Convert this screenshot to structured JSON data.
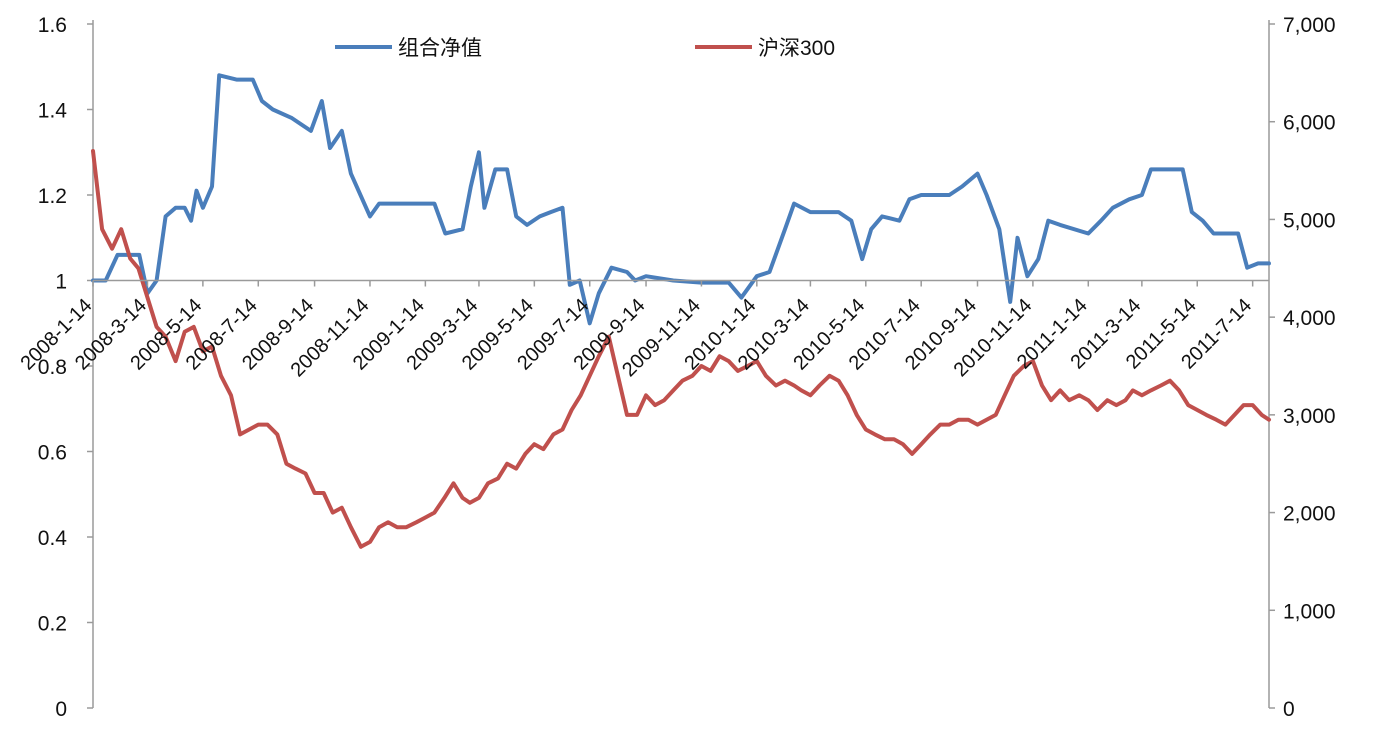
{
  "chart_data": {
    "type": "line",
    "x_type": "date",
    "x_ticks": [
      "2008-1-14",
      "2008-3-14",
      "2008-5-14",
      "2008-7-14",
      "2008-9-14",
      "2008-11-14",
      "2009-1-14",
      "2009-3-14",
      "2009-5-14",
      "2009-7-14",
      "2009-9-14",
      "2009-11-14",
      "2010-1-14",
      "2010-3-14",
      "2010-5-14",
      "2010-7-14",
      "2010-9-14",
      "2010-11-14",
      "2011-1-14",
      "2011-3-14",
      "2011-5-14",
      "2011-7-14"
    ],
    "x_range": [
      "2008-1-14",
      "2011-8-1"
    ],
    "y_left": {
      "ticks": [
        "0",
        "0.2",
        "0.4",
        "0.6",
        "0.8",
        "1",
        "1.2",
        "1.4",
        "1.6"
      ],
      "range": [
        0,
        1.6
      ],
      "crosses_at": 1
    },
    "y_right": {
      "ticks": [
        "0",
        "1,000",
        "2,000",
        "3,000",
        "4,000",
        "5,000",
        "6,000",
        "7,000"
      ],
      "range": [
        0,
        7000
      ]
    },
    "grid": false,
    "legend": {
      "position": "top-center"
    },
    "series": [
      {
        "name": "组合净值",
        "axis": "left",
        "color": "#4a7ebb",
        "points": [
          [
            "2008-1-14",
            1.0
          ],
          [
            "2008-1-28",
            1.0
          ],
          [
            "2008-2-10",
            1.06
          ],
          [
            "2008-3-5",
            1.06
          ],
          [
            "2008-3-14",
            0.97
          ],
          [
            "2008-3-24",
            1.0
          ],
          [
            "2008-4-3",
            1.15
          ],
          [
            "2008-4-14",
            1.17
          ],
          [
            "2008-4-24",
            1.17
          ],
          [
            "2008-5-1",
            1.14
          ],
          [
            "2008-5-7",
            1.21
          ],
          [
            "2008-5-14",
            1.17
          ],
          [
            "2008-5-24",
            1.22
          ],
          [
            "2008-6-1",
            1.48
          ],
          [
            "2008-6-20",
            1.47
          ],
          [
            "2008-7-8",
            1.47
          ],
          [
            "2008-7-18",
            1.42
          ],
          [
            "2008-7-30",
            1.4
          ],
          [
            "2008-8-20",
            1.38
          ],
          [
            "2008-9-10",
            1.35
          ],
          [
            "2008-9-22",
            1.42
          ],
          [
            "2008-10-1",
            1.31
          ],
          [
            "2008-10-14",
            1.35
          ],
          [
            "2008-10-24",
            1.25
          ],
          [
            "2008-11-14",
            1.15
          ],
          [
            "2008-11-24",
            1.18
          ],
          [
            "2008-12-24",
            1.18
          ],
          [
            "2009-1-24",
            1.18
          ],
          [
            "2009-2-5",
            1.11
          ],
          [
            "2009-2-24",
            1.12
          ],
          [
            "2009-3-5",
            1.22
          ],
          [
            "2009-3-14",
            1.3
          ],
          [
            "2009-3-20",
            1.17
          ],
          [
            "2009-4-1",
            1.26
          ],
          [
            "2009-4-14",
            1.26
          ],
          [
            "2009-4-24",
            1.15
          ],
          [
            "2009-5-6",
            1.13
          ],
          [
            "2009-5-20",
            1.15
          ],
          [
            "2009-6-1",
            1.16
          ],
          [
            "2009-6-14",
            1.17
          ],
          [
            "2009-6-22",
            0.99
          ],
          [
            "2009-7-3",
            1.0
          ],
          [
            "2009-7-14",
            0.9
          ],
          [
            "2009-7-24",
            0.97
          ],
          [
            "2009-8-7",
            1.03
          ],
          [
            "2009-8-24",
            1.02
          ],
          [
            "2009-9-2",
            1.0
          ],
          [
            "2009-9-14",
            1.01
          ],
          [
            "2009-10-14",
            1.0
          ],
          [
            "2009-11-14",
            0.995
          ],
          [
            "2009-12-14",
            0.995
          ],
          [
            "2009-12-28",
            0.96
          ],
          [
            "2010-1-14",
            1.01
          ],
          [
            "2010-1-28",
            1.02
          ],
          [
            "2010-2-14",
            1.12
          ],
          [
            "2010-2-24",
            1.18
          ],
          [
            "2010-3-14",
            1.16
          ],
          [
            "2010-4-14",
            1.16
          ],
          [
            "2010-4-28",
            1.14
          ],
          [
            "2010-5-10",
            1.05
          ],
          [
            "2010-5-20",
            1.12
          ],
          [
            "2010-6-1",
            1.15
          ],
          [
            "2010-6-20",
            1.14
          ],
          [
            "2010-7-1",
            1.19
          ],
          [
            "2010-7-14",
            1.2
          ],
          [
            "2010-7-28",
            1.2
          ],
          [
            "2010-8-14",
            1.2
          ],
          [
            "2010-8-28",
            1.22
          ],
          [
            "2010-9-14",
            1.25
          ],
          [
            "2010-9-24",
            1.2
          ],
          [
            "2010-10-8",
            1.12
          ],
          [
            "2010-10-20",
            0.95
          ],
          [
            "2010-10-28",
            1.1
          ],
          [
            "2010-11-8",
            1.01
          ],
          [
            "2010-11-20",
            1.05
          ],
          [
            "2010-12-1",
            1.14
          ],
          [
            "2010-12-14",
            1.13
          ],
          [
            "2011-1-14",
            1.11
          ],
          [
            "2011-1-28",
            1.14
          ],
          [
            "2011-2-10",
            1.17
          ],
          [
            "2011-2-28",
            1.19
          ],
          [
            "2011-3-14",
            1.2
          ],
          [
            "2011-3-24",
            1.26
          ],
          [
            "2011-4-14",
            1.26
          ],
          [
            "2011-4-28",
            1.26
          ],
          [
            "2011-5-8",
            1.16
          ],
          [
            "2011-5-20",
            1.14
          ],
          [
            "2011-6-1",
            1.11
          ],
          [
            "2011-6-14",
            1.11
          ],
          [
            "2011-6-28",
            1.11
          ],
          [
            "2011-7-8",
            1.03
          ],
          [
            "2011-7-20",
            1.04
          ],
          [
            "2011-8-1",
            1.04
          ]
        ]
      },
      {
        "name": "沪深300",
        "axis": "right",
        "color": "#c0504d",
        "points": [
          [
            "2008-1-14",
            5700
          ],
          [
            "2008-1-24",
            4900
          ],
          [
            "2008-2-4",
            4700
          ],
          [
            "2008-2-14",
            4900
          ],
          [
            "2008-2-24",
            4600
          ],
          [
            "2008-3-4",
            4500
          ],
          [
            "2008-3-14",
            4200
          ],
          [
            "2008-3-24",
            3900
          ],
          [
            "2008-4-3",
            3800
          ],
          [
            "2008-4-14",
            3550
          ],
          [
            "2008-4-24",
            3850
          ],
          [
            "2008-5-4",
            3900
          ],
          [
            "2008-5-14",
            3650
          ],
          [
            "2008-5-24",
            3700
          ],
          [
            "2008-6-3",
            3400
          ],
          [
            "2008-6-14",
            3200
          ],
          [
            "2008-6-24",
            2800
          ],
          [
            "2008-7-4",
            2850
          ],
          [
            "2008-7-14",
            2900
          ],
          [
            "2008-7-24",
            2900
          ],
          [
            "2008-8-4",
            2800
          ],
          [
            "2008-8-14",
            2500
          ],
          [
            "2008-8-24",
            2450
          ],
          [
            "2008-9-4",
            2400
          ],
          [
            "2008-9-14",
            2200
          ],
          [
            "2008-9-24",
            2200
          ],
          [
            "2008-10-4",
            2000
          ],
          [
            "2008-10-14",
            2050
          ],
          [
            "2008-10-24",
            1850
          ],
          [
            "2008-11-4",
            1650
          ],
          [
            "2008-11-14",
            1700
          ],
          [
            "2008-11-24",
            1850
          ],
          [
            "2008-12-4",
            1900
          ],
          [
            "2008-12-14",
            1850
          ],
          [
            "2008-12-24",
            1850
          ],
          [
            "2009-1-4",
            1900
          ],
          [
            "2009-1-14",
            1950
          ],
          [
            "2009-1-24",
            2000
          ],
          [
            "2009-2-4",
            2150
          ],
          [
            "2009-2-14",
            2300
          ],
          [
            "2009-2-24",
            2150
          ],
          [
            "2009-3-4",
            2100
          ],
          [
            "2009-3-14",
            2150
          ],
          [
            "2009-3-24",
            2300
          ],
          [
            "2009-4-4",
            2350
          ],
          [
            "2009-4-14",
            2500
          ],
          [
            "2009-4-24",
            2450
          ],
          [
            "2009-5-4",
            2600
          ],
          [
            "2009-5-14",
            2700
          ],
          [
            "2009-5-24",
            2650
          ],
          [
            "2009-6-4",
            2800
          ],
          [
            "2009-6-14",
            2850
          ],
          [
            "2009-6-24",
            3050
          ],
          [
            "2009-7-4",
            3200
          ],
          [
            "2009-7-14",
            3400
          ],
          [
            "2009-7-24",
            3600
          ],
          [
            "2009-8-4",
            3800
          ],
          [
            "2009-8-14",
            3400
          ],
          [
            "2009-8-24",
            3000
          ],
          [
            "2009-9-4",
            3000
          ],
          [
            "2009-9-14",
            3200
          ],
          [
            "2009-9-24",
            3100
          ],
          [
            "2009-10-4",
            3150
          ],
          [
            "2009-10-14",
            3250
          ],
          [
            "2009-10-24",
            3350
          ],
          [
            "2009-11-4",
            3400
          ],
          [
            "2009-11-14",
            3500
          ],
          [
            "2009-11-24",
            3450
          ],
          [
            "2009-12-4",
            3600
          ],
          [
            "2009-12-14",
            3550
          ],
          [
            "2009-12-24",
            3450
          ],
          [
            "2010-1-4",
            3500
          ],
          [
            "2010-1-14",
            3550
          ],
          [
            "2010-1-24",
            3400
          ],
          [
            "2010-2-4",
            3300
          ],
          [
            "2010-2-14",
            3350
          ],
          [
            "2010-2-24",
            3300
          ],
          [
            "2010-3-4",
            3250
          ],
          [
            "2010-3-14",
            3200
          ],
          [
            "2010-3-24",
            3300
          ],
          [
            "2010-4-4",
            3400
          ],
          [
            "2010-4-14",
            3350
          ],
          [
            "2010-4-24",
            3200
          ],
          [
            "2010-5-4",
            3000
          ],
          [
            "2010-5-14",
            2850
          ],
          [
            "2010-5-24",
            2800
          ],
          [
            "2010-6-4",
            2750
          ],
          [
            "2010-6-14",
            2750
          ],
          [
            "2010-6-24",
            2700
          ],
          [
            "2010-7-4",
            2600
          ],
          [
            "2010-7-14",
            2700
          ],
          [
            "2010-7-24",
            2800
          ],
          [
            "2010-8-4",
            2900
          ],
          [
            "2010-8-14",
            2900
          ],
          [
            "2010-8-24",
            2950
          ],
          [
            "2010-9-4",
            2950
          ],
          [
            "2010-9-14",
            2900
          ],
          [
            "2010-9-24",
            2950
          ],
          [
            "2010-10-4",
            3000
          ],
          [
            "2010-10-14",
            3200
          ],
          [
            "2010-10-24",
            3400
          ],
          [
            "2010-11-4",
            3500
          ],
          [
            "2010-11-14",
            3550
          ],
          [
            "2010-11-24",
            3300
          ],
          [
            "2010-12-4",
            3150
          ],
          [
            "2010-12-14",
            3250
          ],
          [
            "2010-12-24",
            3150
          ],
          [
            "2011-1-4",
            3200
          ],
          [
            "2011-1-14",
            3150
          ],
          [
            "2011-1-24",
            3050
          ],
          [
            "2011-2-4",
            3150
          ],
          [
            "2011-2-14",
            3100
          ],
          [
            "2011-2-24",
            3150
          ],
          [
            "2011-3-4",
            3250
          ],
          [
            "2011-3-14",
            3200
          ],
          [
            "2011-3-24",
            3250
          ],
          [
            "2011-4-4",
            3300
          ],
          [
            "2011-4-14",
            3350
          ],
          [
            "2011-4-24",
            3250
          ],
          [
            "2011-5-4",
            3100
          ],
          [
            "2011-5-14",
            3050
          ],
          [
            "2011-5-24",
            3000
          ],
          [
            "2011-6-4",
            2950
          ],
          [
            "2011-6-14",
            2900
          ],
          [
            "2011-6-24",
            3000
          ],
          [
            "2011-7-4",
            3100
          ],
          [
            "2011-7-14",
            3100
          ],
          [
            "2011-7-24",
            3000
          ],
          [
            "2011-8-1",
            2950
          ]
        ]
      }
    ]
  }
}
